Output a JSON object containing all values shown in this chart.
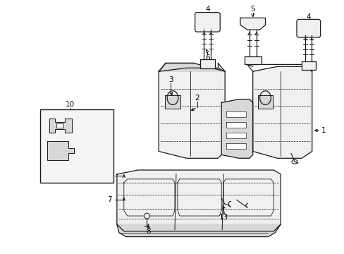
{
  "background_color": "#ffffff",
  "fig_width": 4.89,
  "fig_height": 3.6,
  "dpi": 100,
  "line_color": "#1a1a1a",
  "fill_color": "#f0f0f0",
  "dark_fill": "#d8d8d8",
  "font_size": 7.5
}
